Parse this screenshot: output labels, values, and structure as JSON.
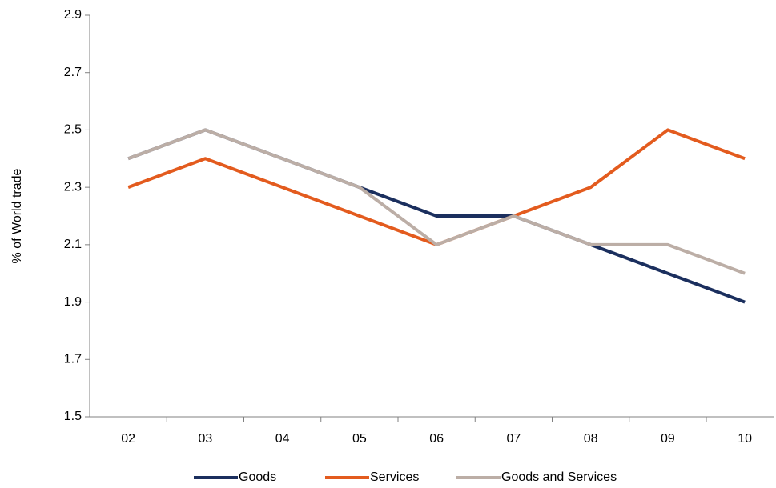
{
  "chart_data": {
    "type": "line",
    "y_label": "% of World trade",
    "categories": [
      "02",
      "03",
      "04",
      "05",
      "06",
      "07",
      "08",
      "09",
      "10"
    ],
    "series": [
      {
        "name": "Goods",
        "color": "#1b2f5e",
        "values": [
          2.4,
          2.5,
          2.4,
          2.3,
          2.2,
          2.2,
          2.1,
          2.0,
          1.9
        ]
      },
      {
        "name": "Services",
        "color": "#e35b1e",
        "values": [
          2.3,
          2.4,
          2.3,
          2.2,
          2.1,
          2.2,
          2.3,
          2.5,
          2.4
        ]
      },
      {
        "name": "Goods and Services",
        "color": "#bcaea6",
        "values": [
          2.4,
          2.5,
          2.4,
          2.3,
          2.1,
          2.2,
          2.1,
          2.1,
          2.0
        ]
      }
    ],
    "ylim": [
      1.5,
      2.9
    ],
    "yticks": [
      1.5,
      1.7,
      1.9,
      2.1,
      2.3,
      2.5,
      2.7,
      2.9
    ],
    "grid": false,
    "legend": "bottom"
  }
}
